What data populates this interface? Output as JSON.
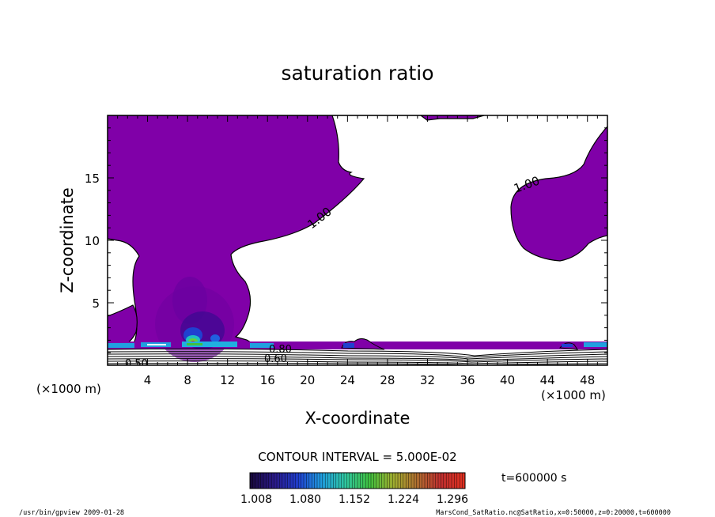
{
  "chart_data": {
    "type": "contour",
    "title": "saturation ratio",
    "xlabel": "X-coordinate",
    "ylabel": "Z-coordinate",
    "x_unit": "(×1000 m)",
    "z_unit": "(×1000 m)",
    "xlim": [
      0,
      50
    ],
    "ylim": [
      0,
      20
    ],
    "x_ticks": [
      4,
      8,
      12,
      16,
      20,
      24,
      28,
      32,
      36,
      40,
      44,
      48
    ],
    "y_ticks": [
      5,
      10,
      15
    ],
    "contour_labels": [
      "1.00",
      "1.00",
      "0.80",
      "0.60",
      "0.50"
    ],
    "contour_interval_text": "CONTOUR INTERVAL = 5.000E-02",
    "time_text": "t=600000 s",
    "colorbar": {
      "tick_labels": [
        "1.008",
        "1.080",
        "1.152",
        "1.224",
        "1.296"
      ],
      "colors": [
        "#1a0a40",
        "#2a1a8a",
        "#2040d0",
        "#20a0e0",
        "#30c8a0",
        "#40c040",
        "#a0b030",
        "#b07030",
        "#c03030",
        "#e03020"
      ]
    },
    "fill_color": "#8000a8",
    "footer_left": "/usr/bin/gpview   2009-01-28",
    "footer_right": "MarsCond_SatRatio.nc@SatRatio,x=0:50000,z=0:20000,t=600000"
  }
}
